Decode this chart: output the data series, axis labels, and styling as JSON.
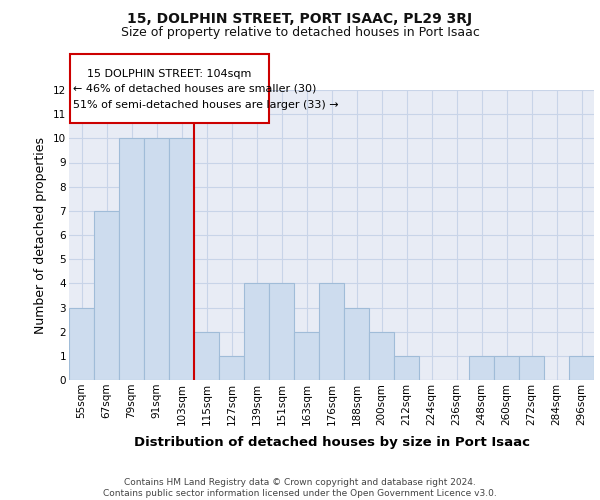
{
  "title": "15, DOLPHIN STREET, PORT ISAAC, PL29 3RJ",
  "subtitle": "Size of property relative to detached houses in Port Isaac",
  "xlabel": "Distribution of detached houses by size in Port Isaac",
  "ylabel": "Number of detached properties",
  "categories": [
    "55sqm",
    "67sqm",
    "79sqm",
    "91sqm",
    "103sqm",
    "115sqm",
    "127sqm",
    "139sqm",
    "151sqm",
    "163sqm",
    "176sqm",
    "188sqm",
    "200sqm",
    "212sqm",
    "224sqm",
    "236sqm",
    "248sqm",
    "260sqm",
    "272sqm",
    "284sqm",
    "296sqm"
  ],
  "values": [
    3,
    7,
    10,
    10,
    10,
    2,
    1,
    4,
    4,
    2,
    4,
    3,
    2,
    1,
    0,
    0,
    1,
    1,
    1,
    0,
    1
  ],
  "bar_color": "#cddcee",
  "bar_edge_color": "#a0bcd8",
  "vline_x_index": 4,
  "vline_color": "#cc0000",
  "annotation_line1": "15 DOLPHIN STREET: 104sqm",
  "annotation_line2": "← 46% of detached houses are smaller (30)",
  "annotation_line3": "51% of semi-detached houses are larger (33) →",
  "annotation_box_color": "#cc0000",
  "ylim": [
    0,
    12
  ],
  "yticks": [
    0,
    1,
    2,
    3,
    4,
    5,
    6,
    7,
    8,
    9,
    10,
    11,
    12
  ],
  "grid_color": "#c8d4e8",
  "background_color": "#e8ecf5",
  "footer": "Contains HM Land Registry data © Crown copyright and database right 2024.\nContains public sector information licensed under the Open Government Licence v3.0.",
  "title_fontsize": 10,
  "subtitle_fontsize": 9,
  "axis_label_fontsize": 9,
  "tick_fontsize": 7.5
}
